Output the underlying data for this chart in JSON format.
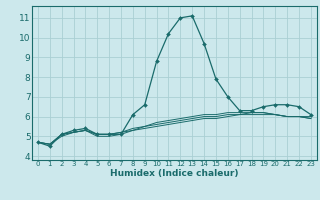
{
  "xlabel": "Humidex (Indice chaleur)",
  "bg_color": "#cce8ec",
  "grid_color": "#aacfd4",
  "line_color": "#1a6b6b",
  "xlim": [
    -0.5,
    23.5
  ],
  "ylim": [
    3.8,
    11.6
  ],
  "yticks": [
    4,
    5,
    6,
    7,
    8,
    9,
    10,
    11
  ],
  "xticks": [
    0,
    1,
    2,
    3,
    4,
    5,
    6,
    7,
    8,
    9,
    10,
    11,
    12,
    13,
    14,
    15,
    16,
    17,
    18,
    19,
    20,
    21,
    22,
    23
  ],
  "series": [
    [
      4.7,
      4.5,
      5.1,
      5.3,
      5.4,
      5.1,
      5.1,
      5.1,
      6.1,
      6.6,
      8.8,
      10.2,
      11.0,
      11.1,
      9.7,
      7.9,
      7.0,
      6.3,
      6.3,
      6.5,
      6.6,
      6.6,
      6.5,
      6.1
    ],
    [
      4.7,
      4.6,
      5.1,
      5.2,
      5.3,
      5.1,
      5.1,
      5.2,
      5.4,
      5.5,
      5.7,
      5.8,
      5.9,
      6.0,
      6.1,
      6.1,
      6.2,
      6.2,
      6.2,
      6.2,
      6.1,
      6.0,
      6.0,
      6.0
    ],
    [
      4.7,
      4.6,
      5.1,
      5.2,
      5.3,
      5.1,
      5.1,
      5.2,
      5.3,
      5.5,
      5.6,
      5.7,
      5.8,
      5.9,
      6.0,
      6.0,
      6.1,
      6.1,
      6.2,
      6.2,
      6.1,
      6.0,
      6.0,
      5.9
    ],
    [
      4.7,
      4.6,
      5.0,
      5.2,
      5.3,
      5.0,
      5.0,
      5.1,
      5.3,
      5.4,
      5.5,
      5.6,
      5.7,
      5.8,
      5.9,
      5.9,
      6.0,
      6.1,
      6.1,
      6.1,
      6.1,
      6.0,
      6.0,
      5.9
    ]
  ]
}
